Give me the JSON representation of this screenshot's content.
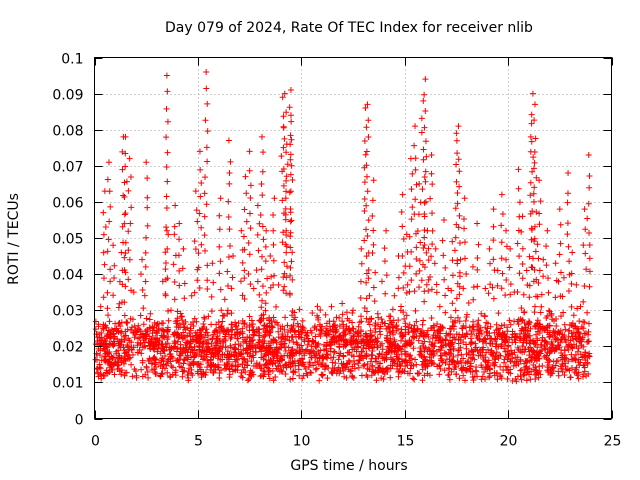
{
  "chart_data": {
    "type": "scatter",
    "title": "Day 079 of 2024, Rate Of TEC Index for receiver nlib",
    "xlabel": "GPS time / hours",
    "ylabel": "ROTI / TECUs",
    "xlim": [
      0,
      25
    ],
    "ylim": [
      0,
      0.1
    ],
    "xticks": [
      0,
      5,
      10,
      15,
      20,
      25
    ],
    "xtick_labels": [
      "0",
      "5",
      "10",
      "15",
      "20",
      "25"
    ],
    "yticks": [
      0,
      0.01,
      0.02,
      0.03,
      0.04,
      0.05,
      0.06,
      0.07,
      0.08,
      0.09,
      0.1
    ],
    "ytick_labels": [
      "0",
      "0.01",
      "0.02",
      "0.03",
      "0.04",
      "0.05",
      "0.06",
      "0.07",
      "0.08",
      "0.09",
      "0.1"
    ],
    "grid": true,
    "marker": "+",
    "color": "#ff0000",
    "series": [
      {
        "name": "ROTI",
        "x": [
          0.1,
          0.3,
          0.5,
          0.7,
          0.9,
          1.1,
          1.3,
          1.5,
          1.7,
          1.9,
          2.1,
          2.3,
          2.5,
          2.7,
          2.9,
          3.1,
          3.3,
          3.5,
          3.7,
          3.9,
          4.1,
          4.3,
          4.5,
          4.7,
          4.9,
          5.1,
          5.3,
          5.5,
          5.7,
          5.9,
          6.1,
          6.3,
          6.5,
          6.7,
          6.9,
          7.1,
          7.3,
          7.5,
          7.7,
          7.9,
          8.1,
          8.3,
          8.5,
          8.7,
          8.9,
          9.1,
          9.3,
          9.5,
          9.7,
          9.9,
          10.1,
          10.3,
          10.5,
          10.7,
          10.9,
          11.1,
          11.3,
          11.5,
          11.7,
          11.9,
          12.1,
          12.3,
          12.5,
          12.7,
          12.9,
          13.1,
          13.3,
          13.5,
          13.7,
          13.9,
          14.1,
          14.3,
          14.5,
          14.7,
          14.9,
          15.1,
          15.3,
          15.5,
          15.7,
          15.9,
          16.1,
          16.3,
          16.5,
          16.7,
          16.9,
          17.1,
          17.3,
          17.5,
          17.7,
          17.9,
          18.1,
          18.3,
          18.5,
          18.7,
          18.9,
          19.1,
          19.3,
          19.5,
          19.7,
          19.9,
          20.1,
          20.3,
          20.5,
          20.7,
          20.9,
          21.1,
          21.3,
          21.5,
          21.7,
          21.9,
          22.1,
          22.3,
          22.5,
          22.7,
          22.9,
          23.1,
          23.3,
          23.5,
          23.7,
          23.9,
          3.5,
          5.4,
          9.2,
          9.5,
          13.2,
          16.0,
          21.2,
          21.3,
          1.4,
          17.6
        ],
        "y": [
          0.018,
          0.031,
          0.063,
          0.071,
          0.048,
          0.022,
          0.046,
          0.078,
          0.072,
          0.035,
          0.021,
          0.044,
          0.071,
          0.029,
          0.017,
          0.025,
          0.038,
          0.052,
          0.03,
          0.059,
          0.054,
          0.047,
          0.021,
          0.034,
          0.063,
          0.074,
          0.028,
          0.019,
          0.043,
          0.022,
          0.061,
          0.033,
          0.077,
          0.045,
          0.024,
          0.052,
          0.067,
          0.074,
          0.036,
          0.059,
          0.078,
          0.052,
          0.045,
          0.061,
          0.037,
          0.089,
          0.076,
          0.084,
          0.028,
          0.018,
          0.015,
          0.012,
          0.02,
          0.017,
          0.026,
          0.019,
          0.014,
          0.022,
          0.028,
          0.018,
          0.024,
          0.016,
          0.03,
          0.021,
          0.047,
          0.086,
          0.034,
          0.066,
          0.029,
          0.038,
          0.052,
          0.024,
          0.034,
          0.045,
          0.062,
          0.051,
          0.072,
          0.081,
          0.065,
          0.088,
          0.052,
          0.073,
          0.047,
          0.031,
          0.055,
          0.036,
          0.049,
          0.079,
          0.044,
          0.061,
          0.032,
          0.042,
          0.054,
          0.029,
          0.036,
          0.047,
          0.058,
          0.041,
          0.062,
          0.052,
          0.047,
          0.035,
          0.069,
          0.056,
          0.041,
          0.078,
          0.031,
          0.066,
          0.044,
          0.052,
          0.029,
          0.043,
          0.058,
          0.039,
          0.068,
          0.046,
          0.037,
          0.031,
          0.058,
          0.073,
          0.095,
          0.096,
          0.09,
          0.091,
          0.087,
          0.094,
          0.09,
          0.087,
          0.078,
          0.081
        ]
      }
    ],
    "dense_band": {
      "description_hint": "bulk of points",
      "y_low": 0.006,
      "y_high": 0.034
    }
  }
}
